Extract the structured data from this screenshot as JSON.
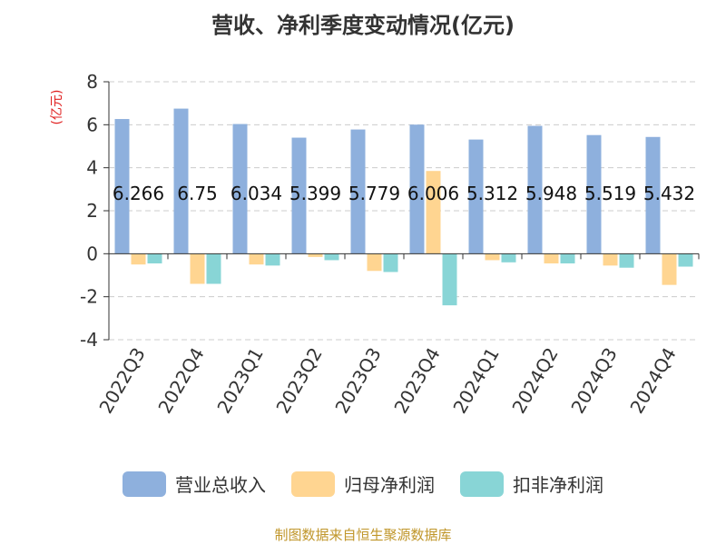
{
  "chart_data": {
    "type": "bar",
    "title": "营收、净利季度变动情况(亿元)",
    "ylabel": "(亿元)",
    "xlabel": "",
    "ylim": [
      -4,
      8
    ],
    "yticks": [
      -4,
      -2,
      0,
      2,
      4,
      6,
      8
    ],
    "grid": true,
    "legend_position": "bottom",
    "categories": [
      "2022Q3",
      "2022Q4",
      "2023Q1",
      "2023Q2",
      "2023Q3",
      "2023Q4",
      "2024Q1",
      "2024Q2",
      "2024Q3",
      "2024Q4"
    ],
    "series": [
      {
        "name": "营业总收入",
        "color": "#8eb0dd",
        "values": [
          6.266,
          6.75,
          6.034,
          5.399,
          5.779,
          6.006,
          5.312,
          5.948,
          5.519,
          5.432
        ],
        "labels": [
          "6.266",
          "6.75",
          "6.034",
          "5.399",
          "5.779",
          "6.006",
          "5.312",
          "5.948",
          "5.519",
          "5.432"
        ]
      },
      {
        "name": "归母净利润",
        "color": "#ffd591",
        "values": [
          -0.5,
          -1.4,
          -0.5,
          -0.15,
          -0.8,
          3.85,
          -0.3,
          -0.45,
          -0.55,
          -1.45
        ]
      },
      {
        "name": "扣非净利润",
        "color": "#88d5d6",
        "values": [
          -0.45,
          -1.4,
          -0.55,
          -0.3,
          -0.85,
          -2.4,
          -0.4,
          -0.45,
          -0.65,
          -0.6
        ]
      }
    ]
  },
  "footer": "制图数据来自恒生聚源数据库"
}
